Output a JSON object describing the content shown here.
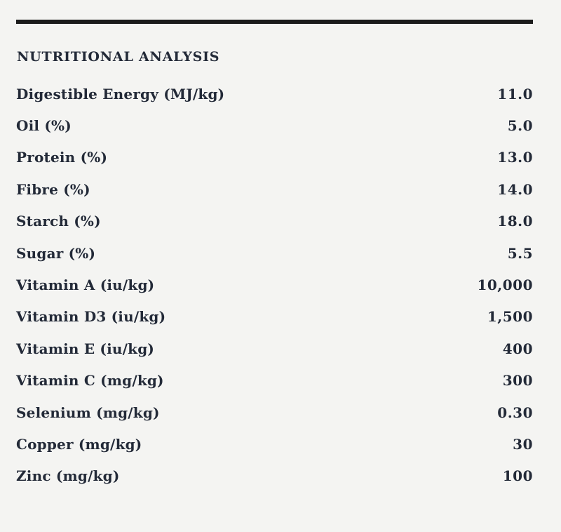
{
  "colors": {
    "background": "#f4f4f2",
    "text": "#232a38",
    "rule": "#1b1b1b"
  },
  "table": {
    "title": "NUTRITIONAL ANALYSIS",
    "rows": [
      {
        "label": "Digestible Energy (MJ/kg)",
        "value": "11.0"
      },
      {
        "label": "Oil (%)",
        "value": "5.0"
      },
      {
        "label": "Protein (%)",
        "value": "13.0"
      },
      {
        "label": "Fibre (%)",
        "value": "14.0"
      },
      {
        "label": "Starch (%)",
        "value": "18.0"
      },
      {
        "label": "Sugar (%)",
        "value": "5.5"
      },
      {
        "label": "Vitamin A (iu/kg)",
        "value": "10,000"
      },
      {
        "label": "Vitamin D3 (iu/kg)",
        "value": "1,500"
      },
      {
        "label": "Vitamin E (iu/kg)",
        "value": "400"
      },
      {
        "label": "Vitamin C (mg/kg)",
        "value": "300"
      },
      {
        "label": "Selenium (mg/kg)",
        "value": "0.30"
      },
      {
        "label": "Copper (mg/kg)",
        "value": "30"
      },
      {
        "label": "Zinc (mg/kg)",
        "value": "100"
      }
    ]
  }
}
